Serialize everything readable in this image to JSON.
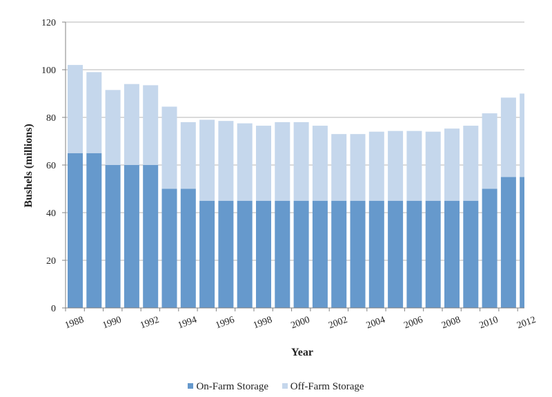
{
  "chart_data": {
    "type": "bar",
    "stacked": true,
    "title": "",
    "xlabel": "Year",
    "ylabel": "Bushels (millions)",
    "ylim": [
      0,
      120
    ],
    "yticks": [
      0,
      20,
      40,
      60,
      80,
      100,
      120
    ],
    "grid": true,
    "legend_position": "bottom",
    "categories": [
      "1988",
      "1989",
      "1990",
      "1991",
      "1992",
      "1993",
      "1994",
      "1995",
      "1996",
      "1997",
      "1998",
      "1999",
      "2000",
      "2001",
      "2002",
      "2003",
      "2004",
      "2005",
      "2006",
      "2007",
      "2008",
      "2009",
      "2010",
      "2011",
      "2012"
    ],
    "tick_labels": [
      "1988",
      "",
      "1990",
      "",
      "1992",
      "",
      "1994",
      "",
      "1996",
      "",
      "1998",
      "",
      "2000",
      "",
      "2002",
      "",
      "2004",
      "",
      "2006",
      "",
      "2008",
      "",
      "2010",
      "",
      "2012"
    ],
    "series": [
      {
        "name": "On-Farm Storage",
        "color": "#6699cc",
        "values": [
          65,
          65,
          60,
          60,
          60,
          50,
          50,
          45,
          45,
          45,
          45,
          45,
          45,
          45,
          45,
          45,
          45,
          45,
          45,
          45,
          45,
          45,
          50,
          55,
          55
        ]
      },
      {
        "name": "Off-Farm Storage",
        "color": "#c5d7ec",
        "values": [
          37,
          34,
          31.5,
          34,
          33.5,
          34.5,
          28,
          34,
          33.5,
          32.5,
          31.5,
          33,
          33,
          31.5,
          28,
          28,
          29,
          29.3,
          29.3,
          29,
          30.3,
          31.5,
          31.7,
          33.3,
          35
        ]
      }
    ]
  }
}
